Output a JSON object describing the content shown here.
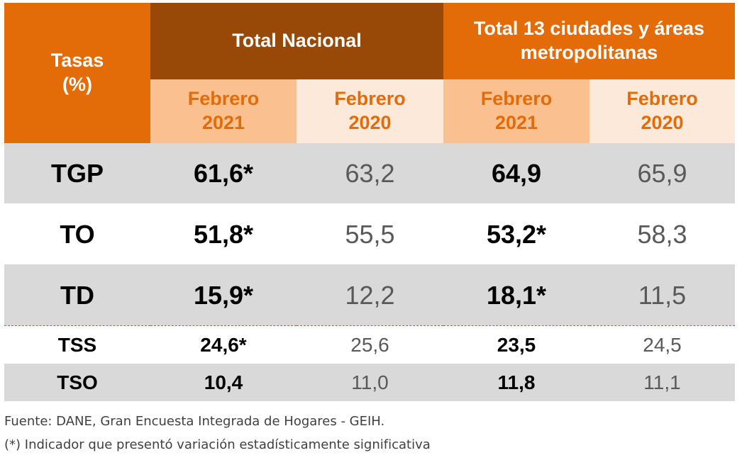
{
  "header": {
    "rate_label": {
      "line1": "Tasas",
      "line2": "(%)"
    },
    "groups": [
      "Total Nacional",
      "Total 13 ciudades y áreas metropolitanas"
    ],
    "periods": [
      {
        "month": "Febrero",
        "year": "2021"
      },
      {
        "month": "Febrero",
        "year": "2020"
      },
      {
        "month": "Febrero",
        "year": "2021"
      },
      {
        "month": "Febrero",
        "year": "2020"
      }
    ]
  },
  "table": {
    "rows": [
      [
        "TGP",
        "61,6*",
        "63,2",
        "64,9",
        "65,9"
      ],
      [
        "TO",
        "51,8*",
        "55,5",
        "53,2*",
        "58,3"
      ],
      [
        "TD",
        "15,9*",
        "12,2",
        "18,1*",
        "11,5"
      ],
      [
        "TSS",
        "24,6*",
        "25,6",
        "23,5",
        "24,5"
      ],
      [
        "TSO",
        "10,4",
        "11,0",
        "11,8",
        "11,1"
      ]
    ]
  },
  "footer": {
    "source": "Fuente: DANE, Gran Encuesta Integrada de Hogares - GEIH.",
    "note": "(*) Indicador que presentó variación estadísticamente significativa"
  }
}
